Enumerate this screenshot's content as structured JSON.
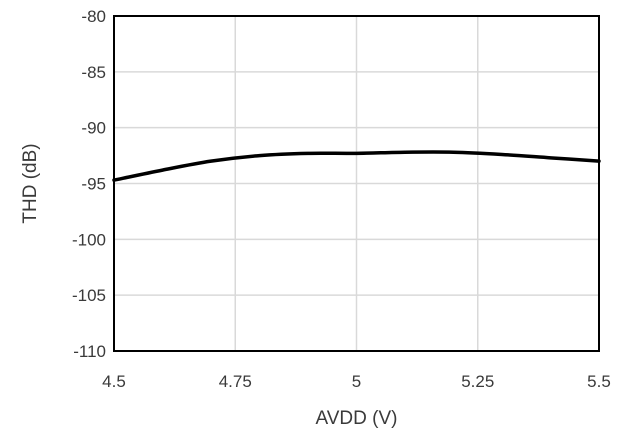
{
  "chart_data": {
    "type": "line",
    "xlabel": "AVDD (V)",
    "ylabel": "THD (dB)",
    "xlim": [
      4.5,
      5.5
    ],
    "ylim": [
      -110,
      -80
    ],
    "xticks": [
      4.5,
      4.75,
      5,
      5.25,
      5.5
    ],
    "xtick_labels": [
      "4.5",
      "4.75",
      "5",
      "5.25",
      "5.5"
    ],
    "yticks": [
      -80,
      -85,
      -90,
      -95,
      -100,
      -105,
      -110
    ],
    "ytick_labels": [
      "-80",
      "-85",
      "-90",
      "-95",
      "-100",
      "-105",
      "-110"
    ],
    "grid": true,
    "legend": "none",
    "series": [
      {
        "color": "#000000",
        "x": [
          4.5,
          4.6,
          4.7,
          4.8,
          4.9,
          5.0,
          5.1,
          5.2,
          5.3,
          5.4,
          5.5
        ],
        "y": [
          -94.7,
          -93.8,
          -93.0,
          -92.5,
          -92.3,
          -92.3,
          -92.2,
          -92.2,
          -92.4,
          -92.7,
          -93.0
        ]
      }
    ]
  }
}
